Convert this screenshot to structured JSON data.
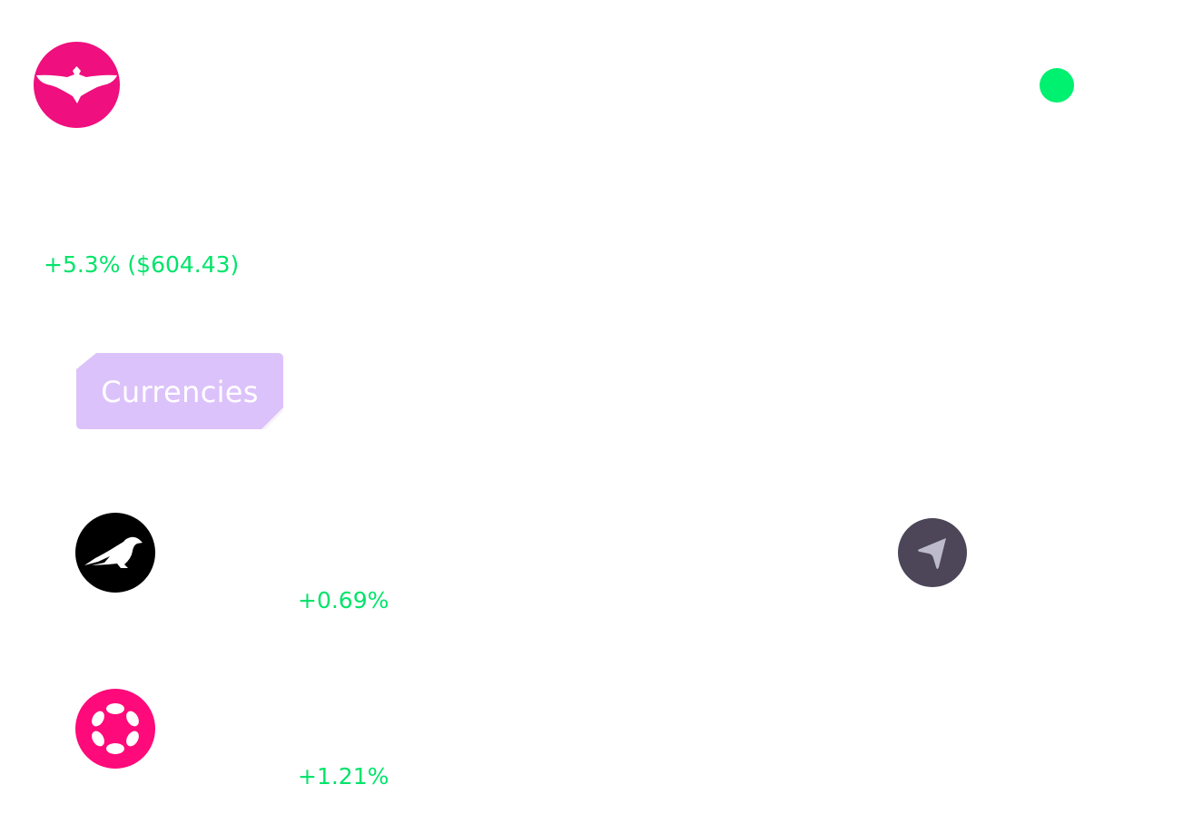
{
  "colors": {
    "brand": "#EF0F7E",
    "status_online": "#00F06F",
    "positive": "#00E46A",
    "tab_bg": "#DCC2FA",
    "asset_kusama_bg": "#000000",
    "asset_polkadot_bg": "#FF0A7A",
    "send_bg": "#4C4658",
    "send_icon": "#BDBACB"
  },
  "header": {
    "logo_icon": "eagle-logo-icon",
    "status_icon": "status-online-icon"
  },
  "portfolio": {
    "change_text": "+5.3% ($604.43)"
  },
  "tabs": {
    "active_label": "Currencies"
  },
  "assets": [
    {
      "icon": "kusama-icon",
      "change": "+0.69%"
    },
    {
      "icon": "polkadot-icon",
      "change": "+1.21%"
    }
  ],
  "actions": {
    "send_icon": "send-arrow-icon"
  }
}
